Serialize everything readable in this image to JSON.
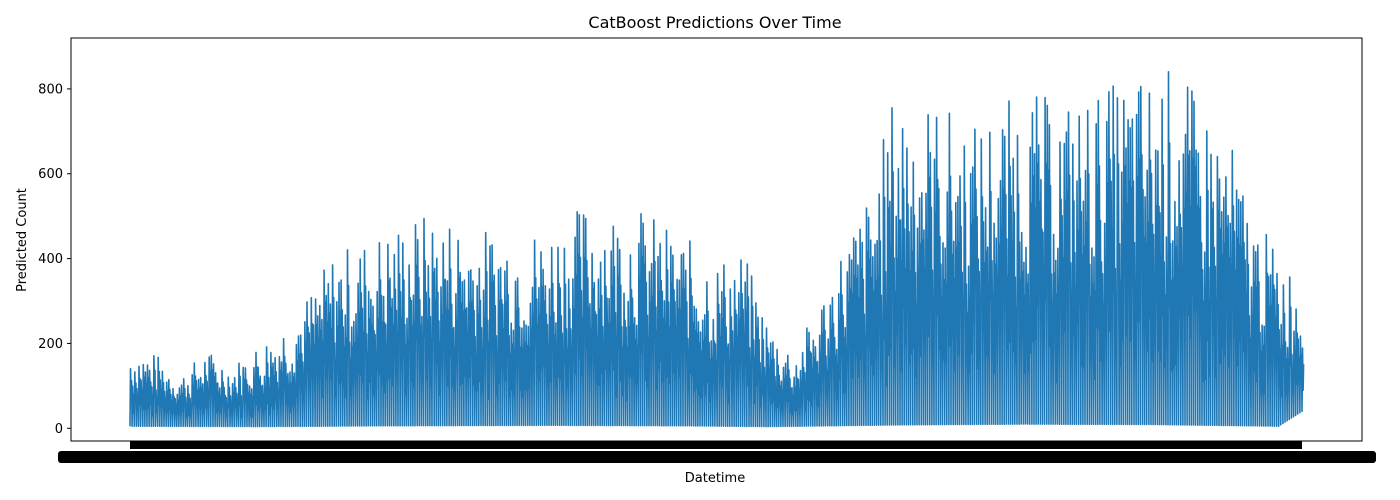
{
  "chart_data": {
    "type": "line",
    "title": "CatBoost Predictions Over Time",
    "xlabel": "Datetime",
    "ylabel": "Predicted Count",
    "ylim": [
      -30,
      920
    ],
    "y_ticks": [
      0,
      200,
      400,
      600,
      800
    ],
    "grid": false,
    "x_tick_labels_note": "x tick labels are overlapping datetime strings rendered as a dense black band",
    "series": [
      {
        "color": "#1f77b4",
        "x_index_range": [
          0,
          551
        ],
        "segment_peaks": [
          [
            0,
            195
          ],
          [
            12,
            175
          ],
          [
            24,
            130
          ],
          [
            36,
            185
          ],
          [
            48,
            150
          ],
          [
            60,
            200
          ],
          [
            72,
            250
          ],
          [
            84,
            320
          ],
          [
            96,
            420
          ],
          [
            108,
            440
          ],
          [
            120,
            470
          ],
          [
            132,
            500
          ],
          [
            144,
            510
          ],
          [
            156,
            490
          ],
          [
            168,
            470
          ],
          [
            180,
            480
          ],
          [
            192,
            470
          ],
          [
            204,
            500
          ],
          [
            216,
            540
          ],
          [
            228,
            520
          ],
          [
            240,
            520
          ],
          [
            252,
            480
          ],
          [
            264,
            440
          ],
          [
            276,
            400
          ],
          [
            288,
            420
          ],
          [
            300,
            250
          ],
          [
            312,
            180
          ],
          [
            324,
            300
          ],
          [
            336,
            450
          ],
          [
            348,
            560
          ],
          [
            360,
            820
          ],
          [
            372,
            780
          ],
          [
            384,
            760
          ],
          [
            396,
            720
          ],
          [
            408,
            760
          ],
          [
            420,
            800
          ],
          [
            432,
            780
          ],
          [
            444,
            780
          ],
          [
            456,
            800
          ],
          [
            468,
            830
          ],
          [
            480,
            840
          ],
          [
            492,
            860
          ],
          [
            504,
            760
          ],
          [
            516,
            700
          ],
          [
            528,
            500
          ],
          [
            540,
            420
          ],
          [
            551,
            340
          ]
        ],
        "segment_troughs": [
          [
            0,
            5
          ],
          [
            60,
            4
          ],
          [
            120,
            6
          ],
          [
            200,
            7
          ],
          [
            260,
            6
          ],
          [
            300,
            4
          ],
          [
            360,
            8
          ],
          [
            420,
            10
          ],
          [
            480,
            9
          ],
          [
            540,
            5
          ],
          [
            551,
            40
          ]
        ]
      }
    ]
  }
}
